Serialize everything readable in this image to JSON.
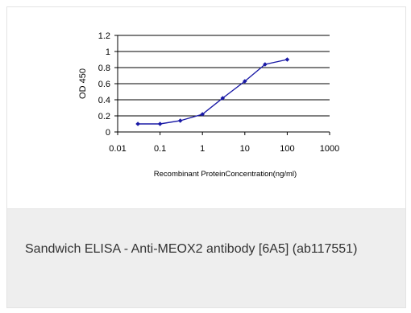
{
  "chart_data": {
    "type": "line",
    "x_scale": "log",
    "xlim": [
      0.01,
      1000
    ],
    "ylim": [
      0,
      1.2
    ],
    "x_ticks": [
      "0.01",
      "0.1",
      "1",
      "10",
      "100",
      "1000"
    ],
    "y_ticks": [
      "0",
      "0.2",
      "0.4",
      "0.6",
      "0.8",
      "1",
      "1.2"
    ],
    "xlabel": "Recombinant ProteinConcentration(ng/ml)",
    "ylabel": "OD 450",
    "grid": "horizontal",
    "series": [
      {
        "color": "#1a1aa6",
        "x": [
          0.03,
          0.1,
          0.3,
          1,
          3,
          10,
          30,
          100
        ],
        "y": [
          0.1,
          0.1,
          0.14,
          0.22,
          0.42,
          0.63,
          0.84,
          0.9
        ]
      }
    ]
  },
  "caption": "Sandwich ELISA - Anti-MEOX2 antibody [6A5] (ab117551)"
}
